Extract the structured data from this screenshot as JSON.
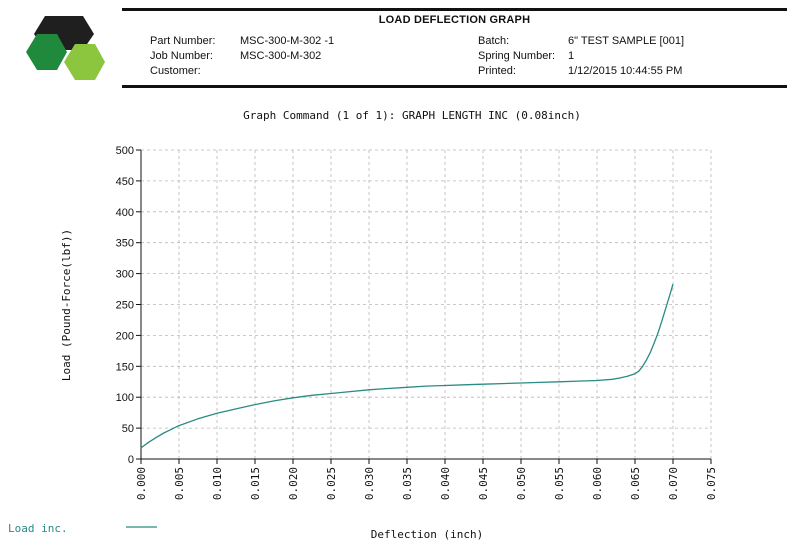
{
  "header": {
    "title": "LOAD DEFLECTION GRAPH",
    "fields": [
      {
        "label": "Part Number:",
        "value": "MSC-300-M-302 -1"
      },
      {
        "label": "Job Number:",
        "value": "MSC-300-M-302"
      },
      {
        "label": "Customer:",
        "value": ""
      },
      {
        "label": "Batch:",
        "value": "6\" TEST SAMPLE [001]"
      },
      {
        "label": "Spring Number:",
        "value": "1"
      },
      {
        "label": "Printed:",
        "value": "1/12/2015 10:44:55 PM"
      }
    ]
  },
  "logo": {
    "icon": "hexagon-logo-icon",
    "colors": {
      "dark": "#1f1f1f",
      "green_dark": "#1f8a3c",
      "green_light": "#8cc63f"
    }
  },
  "chart_data": {
    "type": "line",
    "title": "Graph Command (1 of 1): GRAPH LENGTH INC (0.08inch)",
    "xlabel": "Deflection (inch)",
    "ylabel": "Load (Pound-Force(lbf))",
    "xlim": [
      0,
      0.075
    ],
    "ylim": [
      0,
      500
    ],
    "xticks": [
      "0.000",
      "0.005",
      "0.010",
      "0.015",
      "0.020",
      "0.025",
      "0.030",
      "0.035",
      "0.040",
      "0.045",
      "0.050",
      "0.055",
      "0.060",
      "0.065",
      "0.070",
      "0.075"
    ],
    "yticks": [
      "0",
      "50",
      "100",
      "150",
      "200",
      "250",
      "300",
      "350",
      "400",
      "450",
      "500"
    ],
    "grid": true,
    "legend_position": "bottom-left",
    "series": [
      {
        "name": "Load inc.",
        "color": "#2a8a84",
        "x": [
          0.0,
          0.001,
          0.002,
          0.003,
          0.004,
          0.005,
          0.0075,
          0.01,
          0.0125,
          0.015,
          0.0175,
          0.02,
          0.0225,
          0.025,
          0.0275,
          0.03,
          0.0325,
          0.035,
          0.0375,
          0.04,
          0.0425,
          0.045,
          0.0475,
          0.05,
          0.0525,
          0.055,
          0.0575,
          0.06,
          0.062,
          0.063,
          0.064,
          0.065,
          0.0655,
          0.066,
          0.0665,
          0.067,
          0.0675,
          0.068,
          0.0685,
          0.069,
          0.0695,
          0.07
        ],
        "y": [
          18,
          27,
          35,
          42,
          48,
          54,
          65,
          74,
          81,
          88,
          94,
          99,
          103,
          106,
          109,
          112,
          114,
          116,
          118,
          119,
          120,
          121,
          122,
          123,
          124,
          125,
          126,
          127,
          129,
          131,
          134,
          138,
          142,
          150,
          160,
          172,
          187,
          203,
          222,
          242,
          262,
          283
        ]
      }
    ]
  }
}
